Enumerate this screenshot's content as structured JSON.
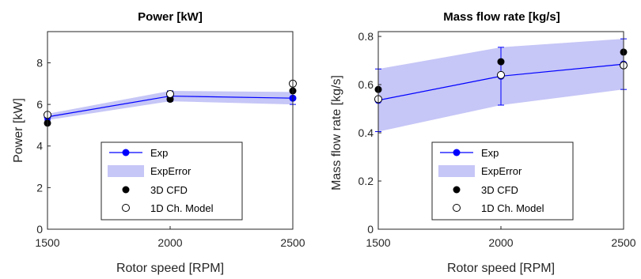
{
  "colors": {
    "exp": "#0000ff",
    "band": "#c6c6f7",
    "cfd": "#000000",
    "model_fill": "#ffffff",
    "axis": "#262626"
  },
  "chart_data": [
    {
      "type": "line",
      "title": "Power [kW]",
      "xlabel": "Rotor speed [RPM]",
      "ylabel": "Power [kW]",
      "x": [
        1500,
        2000,
        2500
      ],
      "xlim": [
        1500,
        2500
      ],
      "ylim": [
        0,
        9.5
      ],
      "xticks": [
        "1500",
        "2000",
        "2500"
      ],
      "yticks": [
        "0",
        "2",
        "4",
        "6",
        "8"
      ],
      "grid": false,
      "legend_position": "lower-center",
      "series": [
        {
          "name": "Exp",
          "style": "line-marker",
          "values": [
            5.4,
            6.4,
            6.3
          ],
          "error": [
            0.15,
            0.25,
            0.3
          ]
        },
        {
          "name": "ExpError",
          "style": "band",
          "lower": [
            5.25,
            6.15,
            6.0
          ],
          "upper": [
            5.55,
            6.65,
            6.6
          ]
        },
        {
          "name": "3D CFD",
          "style": "filled-marker",
          "values": [
            5.1,
            6.25,
            6.65
          ]
        },
        {
          "name": "1D Ch. Model",
          "style": "open-marker",
          "values": [
            5.5,
            6.5,
            7.0
          ]
        }
      ]
    },
    {
      "type": "line",
      "title": "Mass flow rate [kg/s]",
      "xlabel": "Rotor speed [RPM]",
      "ylabel": "Mass flow rate [kg/s]",
      "x": [
        1500,
        2000,
        2500
      ],
      "xlim": [
        1500,
        2500
      ],
      "ylim": [
        0,
        0.82
      ],
      "xticks": [
        "1500",
        "2000",
        "2500"
      ],
      "yticks": [
        "0",
        "0.2",
        "0.4",
        "0.6",
        "0.8"
      ],
      "grid": false,
      "legend_position": "lower-center",
      "series": [
        {
          "name": "Exp",
          "style": "line-marker",
          "values": [
            0.535,
            0.635,
            0.685
          ],
          "error": [
            0.13,
            0.12,
            0.105
          ]
        },
        {
          "name": "ExpError",
          "style": "band",
          "lower": [
            0.405,
            0.515,
            0.58
          ],
          "upper": [
            0.665,
            0.755,
            0.79
          ]
        },
        {
          "name": "3D CFD",
          "style": "filled-marker",
          "values": [
            0.58,
            0.695,
            0.735
          ]
        },
        {
          "name": "1D Ch. Model",
          "style": "open-marker",
          "values": [
            0.54,
            0.64,
            0.68
          ]
        }
      ]
    }
  ]
}
